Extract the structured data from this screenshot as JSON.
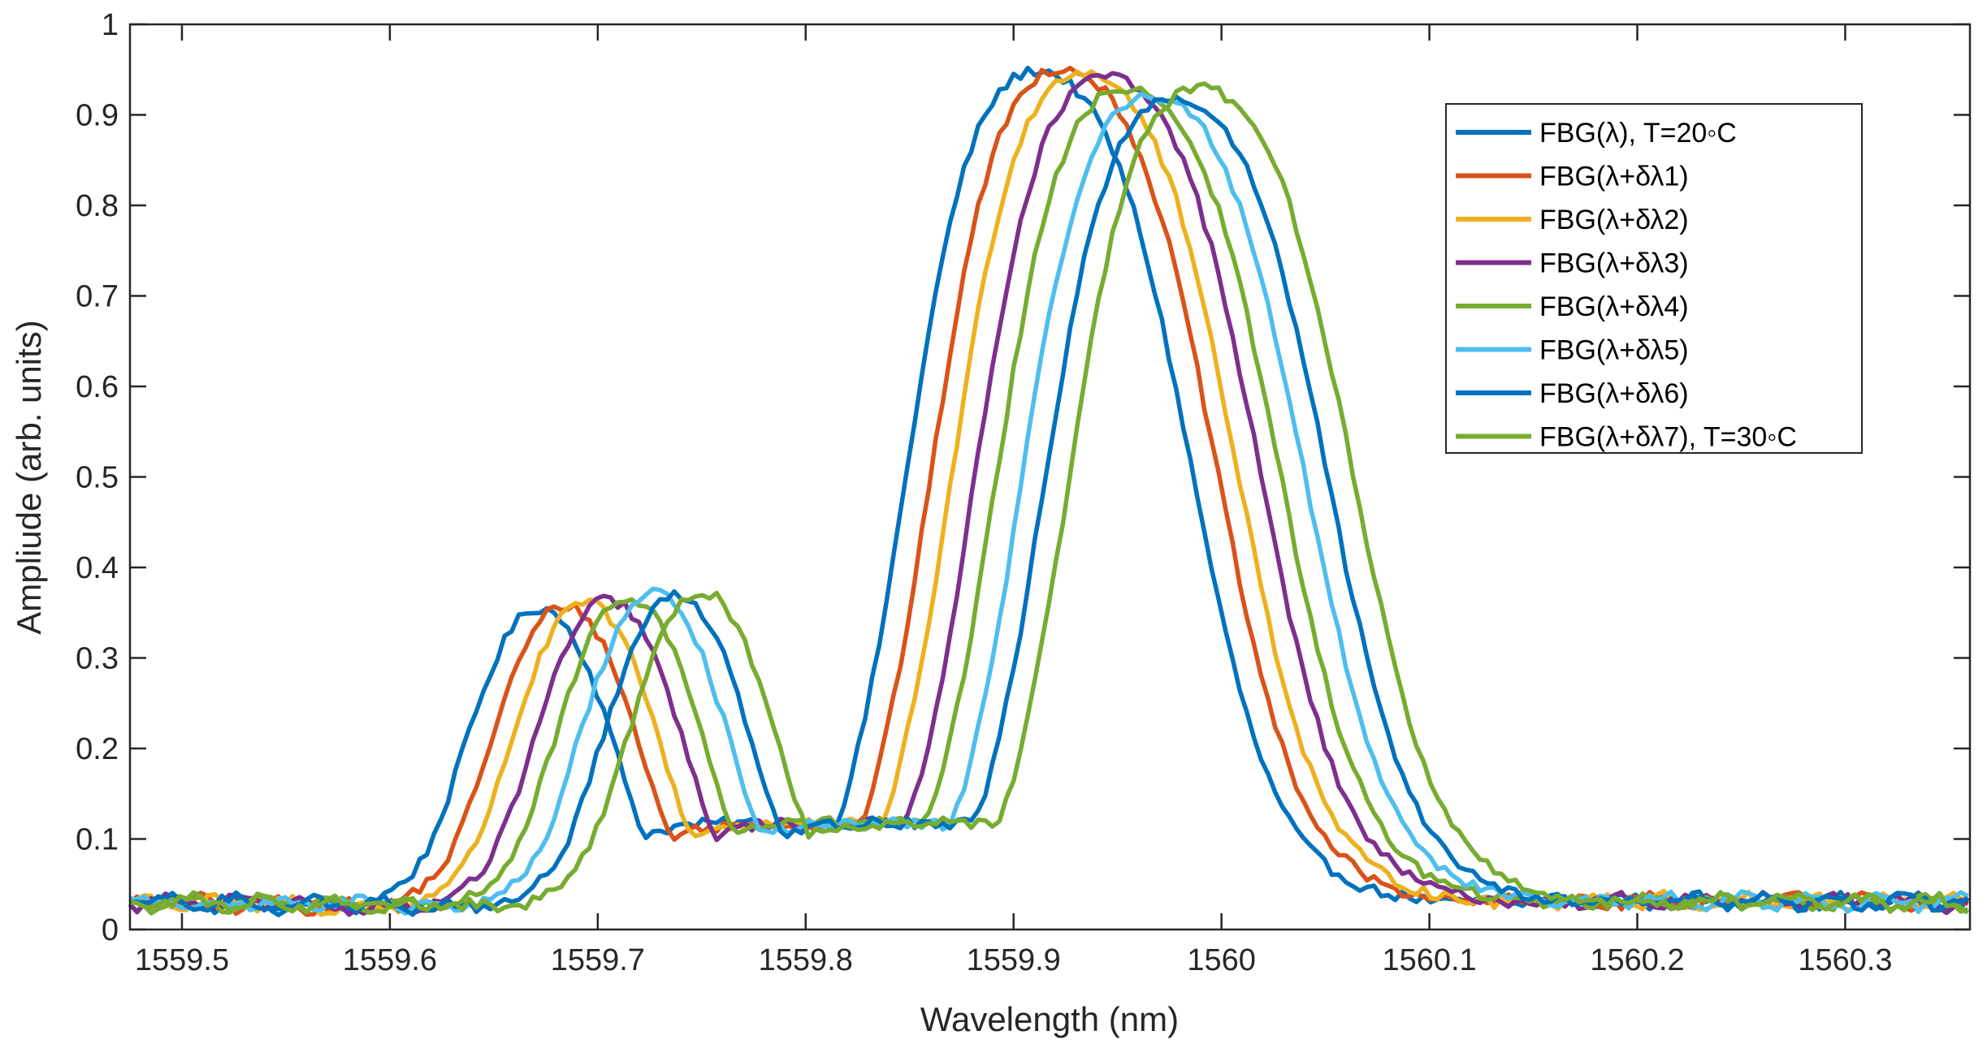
{
  "chart_data": {
    "type": "line",
    "title": "",
    "xlabel": "Wavelength (nm)",
    "ylabel": "Ampliude (arb. units)",
    "xlim": [
      1559.475,
      1560.36
    ],
    "ylim": [
      0,
      1
    ],
    "xticks": [
      1559.5,
      1559.6,
      1559.7,
      1559.8,
      1559.9,
      1560.0,
      1560.1,
      1560.2,
      1560.3
    ],
    "xtick_labels": [
      "1559.5",
      "1559.6",
      "1559.7",
      "1559.8",
      "1559.9",
      "1560",
      "1560.1",
      "1560.2",
      "1560.3"
    ],
    "yticks": [
      0,
      0.1,
      0.2,
      0.3,
      0.4,
      0.5,
      0.6,
      0.7,
      0.8,
      0.9,
      1
    ],
    "ytick_labels": [
      "0",
      "0.1",
      "0.2",
      "0.3",
      "0.4",
      "0.5",
      "0.6",
      "0.7",
      "0.8",
      "0.9",
      "1"
    ],
    "grid": false,
    "legend_position": "top-right",
    "series": [
      {
        "name": "FBG(λ),    T=20◦C",
        "color": "#0072BD",
        "shift_nm": 0.0,
        "side_peak": 0.405,
        "main_peak": 0.995,
        "valley": 0.118
      },
      {
        "name": "FBG(λ+δλ1)",
        "color": "#D95319",
        "shift_nm": 0.012,
        "side_peak": 0.408,
        "main_peak": 0.998,
        "valley": 0.116
      },
      {
        "name": "FBG(λ+δλ2)",
        "color": "#EDB120",
        "shift_nm": 0.022,
        "side_peak": 0.412,
        "main_peak": 0.994,
        "valley": 0.117
      },
      {
        "name": "FBG(λ+δλ3)",
        "color": "#7E2F8E",
        "shift_nm": 0.033,
        "side_peak": 0.415,
        "main_peak": 0.988,
        "valley": 0.118
      },
      {
        "name": "FBG(λ+δλ4)",
        "color": "#77AC30",
        "shift_nm": 0.043,
        "side_peak": 0.418,
        "main_peak": 0.975,
        "valley": 0.119
      },
      {
        "name": "FBG(λ+δλ5)",
        "color": "#4DBEEE",
        "shift_nm": 0.055,
        "side_peak": 0.425,
        "main_peak": 0.966,
        "valley": 0.117
      },
      {
        "name": "FBG(λ+δλ6)",
        "color": "#0072BD",
        "shift_nm": 0.066,
        "side_peak": 0.421,
        "main_peak": 0.962,
        "valley": 0.118
      },
      {
        "name": "FBG(λ+δλ7),   T=30◦C",
        "color": "#77AC30",
        "shift_nm": 0.078,
        "side_peak": 0.425,
        "main_peak": 0.975,
        "valley": 0.118
      }
    ]
  }
}
